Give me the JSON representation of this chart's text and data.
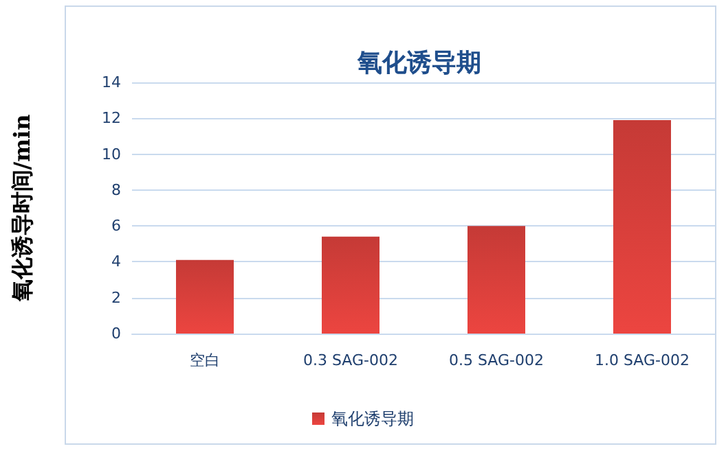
{
  "chart_data": {
    "type": "bar",
    "title": "氧化诱导期",
    "ylabel": "氧化诱导时间/min",
    "categories": [
      "空白",
      "0.3 SAG-002",
      "0.5 SAG-002",
      "1.0 SAG-002"
    ],
    "series": [
      {
        "name": "氧化诱导期",
        "color": "#c53a36",
        "values": [
          4.1,
          5.4,
          6.0,
          11.9
        ]
      }
    ],
    "ylim": [
      0,
      14
    ],
    "yticks": [
      0,
      2,
      4,
      6,
      8,
      10,
      12,
      14
    ],
    "grid": "y",
    "legend": "bottom"
  }
}
